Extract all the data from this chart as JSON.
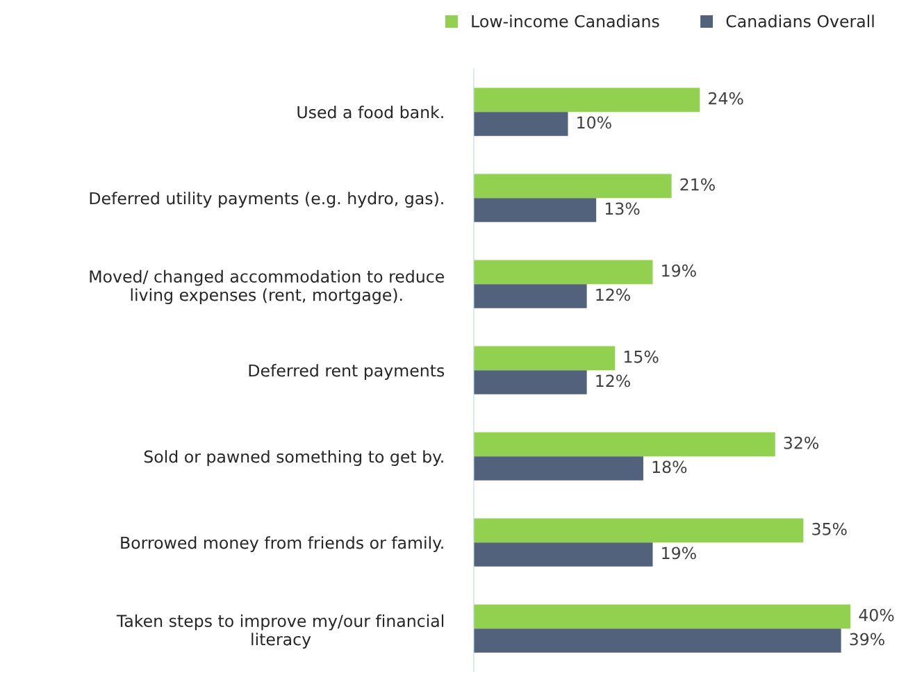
{
  "chart_data": {
    "type": "bar",
    "orientation": "horizontal",
    "legend": "top right",
    "grid": false,
    "categories": [
      "Used a food bank.",
      "Deferred utility payments (e.g. hydro, gas).",
      "Moved/ changed accommodation to reduce\nliving expenses (rent, mortgage).",
      "Deferred rent payments",
      "Sold or pawned something to get by.",
      "Borrowed money from friends or family.",
      "Taken steps to improve my/our financial\nliteracy"
    ],
    "series": [
      {
        "name": "Low-income Canadians",
        "color": "#92d050",
        "values": [
          24,
          21,
          19,
          15,
          32,
          35,
          40
        ],
        "value_labels": [
          "24%",
          "21%",
          "19%",
          "15%",
          "32%",
          "35%",
          "40%"
        ]
      },
      {
        "name": "Canadians Overall",
        "color": "#53627c",
        "values": [
          10,
          13,
          12,
          12,
          18,
          19,
          39
        ],
        "value_labels": [
          "10%",
          "13%",
          "12%",
          "12%",
          "18%",
          "19%",
          "39%"
        ]
      }
    ]
  }
}
